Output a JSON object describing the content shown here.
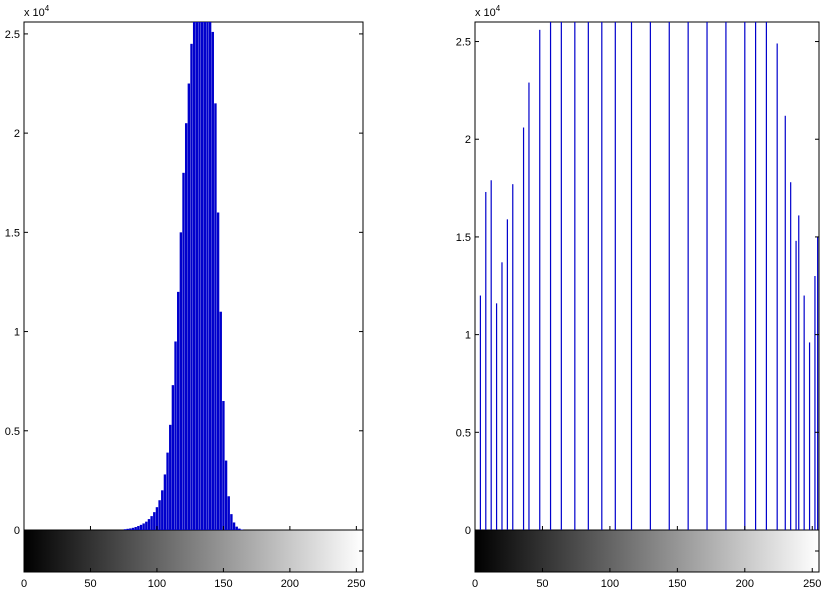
{
  "chart_data": [
    {
      "type": "bar",
      "name": "histogram-original",
      "exponent_label": "x 10",
      "exponent_power": "4",
      "ylim": [
        0,
        25600
      ],
      "xlim": [
        0,
        255
      ],
      "ytick_values": [
        0,
        5000,
        10000,
        15000,
        20000,
        25000
      ],
      "ytick_labels": [
        "0",
        "0.5",
        "1",
        "1.5",
        "2",
        "2.5"
      ],
      "xtick_values": [
        0,
        50,
        100,
        150,
        200,
        250
      ],
      "xtick_labels": [
        "0",
        "50",
        "100",
        "150",
        "200",
        "250"
      ],
      "bar_color": "#0000cc",
      "x": [
        76,
        78,
        80,
        82,
        84,
        86,
        88,
        90,
        92,
        94,
        96,
        98,
        100,
        102,
        104,
        106,
        108,
        110,
        112,
        114,
        116,
        118,
        120,
        122,
        124,
        126,
        128,
        130,
        132,
        134,
        136,
        138,
        140,
        142,
        144,
        146,
        148,
        150,
        152,
        154,
        156,
        158,
        160,
        162,
        164
      ],
      "values": [
        40,
        60,
        80,
        110,
        150,
        200,
        260,
        330,
        420,
        550,
        700,
        900,
        1150,
        1500,
        2000,
        2800,
        3900,
        5300,
        7300,
        9500,
        12000,
        15000,
        18000,
        20500,
        22500,
        24500,
        25600,
        25600,
        25600,
        25600,
        25600,
        25600,
        25600,
        25100,
        21500,
        16000,
        11000,
        6500,
        3500,
        1700,
        800,
        380,
        170,
        70,
        25
      ]
    },
    {
      "type": "bar",
      "name": "histogram-equalized",
      "exponent_label": "x 10",
      "exponent_power": "4",
      "ylim": [
        0,
        26000
      ],
      "xlim": [
        0,
        255
      ],
      "ytick_values": [
        0,
        5000,
        10000,
        15000,
        20000,
        25000
      ],
      "ytick_labels": [
        "0",
        "0.5",
        "1",
        "1.5",
        "2",
        "2.5"
      ],
      "xtick_values": [
        0,
        50,
        100,
        150,
        200,
        250
      ],
      "xtick_labels": [
        "0",
        "50",
        "100",
        "150",
        "200",
        "250"
      ],
      "bar_color": "#0000cc",
      "x": [
        4,
        8,
        12,
        16,
        20,
        24,
        28,
        36,
        40,
        48,
        56,
        64,
        74,
        84,
        94,
        104,
        116,
        130,
        144,
        158,
        172,
        186,
        200,
        208,
        216,
        224,
        230,
        234,
        238,
        240,
        244,
        248,
        252,
        254
      ],
      "values": [
        12000,
        17300,
        17900,
        11600,
        13700,
        15900,
        17700,
        20600,
        22900,
        25600,
        26000,
        26000,
        26000,
        26000,
        26000,
        26000,
        26000,
        26000,
        26000,
        26000,
        26000,
        26000,
        26000,
        26000,
        26000,
        24900,
        21200,
        17800,
        14800,
        16100,
        12000,
        9600,
        13000,
        15000
      ]
    }
  ]
}
